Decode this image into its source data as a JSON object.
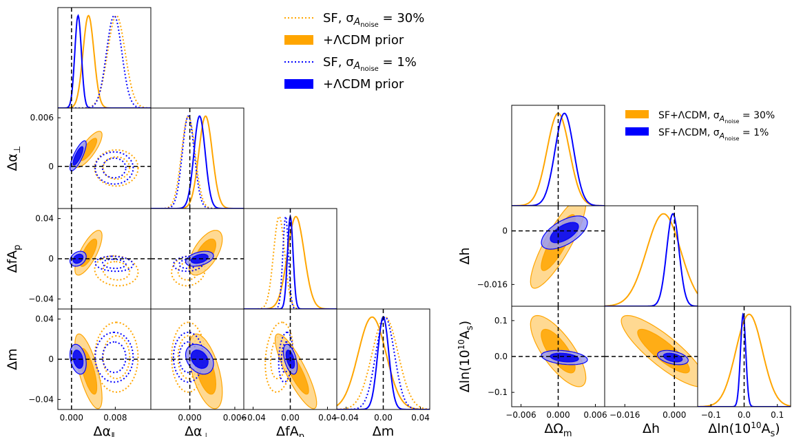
{
  "colors": {
    "orange": "#ffa500",
    "blue": "#0000ff",
    "orange_fill_inner": "#ffa500",
    "orange_fill_outer": "#ffd27f",
    "blue_fill_inner": "#0000ee",
    "blue_fill_outer": "#9999f0"
  },
  "chart_data": [
    {
      "type": "corner",
      "parameters": [
        {
          "name": "Δα_∥",
          "label_base": "Δα",
          "label_sub": "∥",
          "range": [
            -0.0025,
            0.0145
          ],
          "ticks": [
            0.0,
            0.008
          ],
          "tick_labels": [
            "0.000",
            "0.008"
          ]
        },
        {
          "name": "Δα_⊥",
          "label_base": "Δα",
          "label_sub": "⊥",
          "range": [
            -0.0052,
            0.0072
          ],
          "ticks": [
            0.0,
            0.006
          ],
          "tick_labels": [
            "0.000",
            "0.006"
          ]
        },
        {
          "name": "ΔfA_p",
          "label_base": "ΔfA",
          "label_sub": "p",
          "range": [
            -0.05,
            0.05
          ],
          "ticks": [
            -0.04,
            0.0,
            0.04
          ],
          "tick_labels": [
            "−0.04",
            "0.00",
            "0.04"
          ]
        },
        {
          "name": "Δm",
          "label_base": "Δm",
          "label_sub": "",
          "range": [
            -0.05,
            0.05
          ],
          "ticks": [
            -0.04,
            0.0,
            0.04
          ],
          "tick_labels": [
            "−0.04",
            "0.00",
            "0.04"
          ]
        }
      ],
      "y_tick_labels": {
        "Δα_⊥": [
          "0",
          "0.006"
        ],
        "ΔfA_p": [
          "−0.04",
          "0",
          "0.04"
        ],
        "Δm": [
          "−0.04",
          "0",
          "0.04"
        ]
      },
      "truth": [
        0,
        0,
        0,
        0
      ],
      "legend": {
        "placement": "top-right of corner",
        "entries": [
          {
            "label": "SF, σ",
            "sub": "A",
            "subsub": "noise",
            "tail": " = 30%",
            "color": "#ffa500",
            "style": "dotted"
          },
          {
            "label": "+ΛCDM prior",
            "sub": "",
            "subsub": "",
            "tail": "",
            "color": "#ffa500",
            "style": "filled"
          },
          {
            "label": "SF, σ",
            "sub": "A",
            "subsub": "noise",
            "tail": " = 1%",
            "color": "#0000ff",
            "style": "dotted"
          },
          {
            "label": "+ΛCDM prior",
            "sub": "",
            "subsub": "",
            "tail": "",
            "color": "#0000ff",
            "style": "filled"
          }
        ]
      },
      "series": [
        {
          "name": "SF, σ_Anoise = 30%",
          "color": "#ffa500",
          "style": "dotted",
          "mean": [
            0.0082,
            -0.0002,
            -0.012,
            0.002
          ],
          "sigma": [
            0.0016,
            0.0009,
            0.006,
            0.014
          ],
          "corr": [
            [
              1,
              0,
              -0.1,
              0
            ],
            [
              0,
              1,
              0.1,
              0
            ],
            [
              -0.1,
              0.1,
              1,
              0.2
            ],
            [
              0,
              0,
              0.2,
              1
            ]
          ]
        },
        {
          "name": "SF, σ_Anoise = 30% +ΛCDM prior",
          "color": "#ffa500",
          "style": "filled",
          "mean": [
            0.0031,
            0.0021,
            0.006,
            -0.012
          ],
          "sigma": [
            0.001,
            0.0009,
            0.009,
            0.015
          ],
          "corr": [
            [
              1,
              0.8,
              0.75,
              -0.7
            ],
            [
              0.8,
              1,
              0.6,
              -0.55
            ],
            [
              0.75,
              0.6,
              1,
              -0.85
            ],
            [
              -0.7,
              -0.55,
              -0.85,
              1
            ]
          ]
        },
        {
          "name": "SF, σ_Anoise = 1%",
          "color": "#0000ff",
          "style": "dotted",
          "mean": [
            0.0078,
            -0.0002,
            -0.005,
            0.002
          ],
          "sigma": [
            0.0014,
            0.0008,
            0.003,
            0.01
          ],
          "corr": [
            [
              1,
              0,
              -0.1,
              0
            ],
            [
              0,
              1,
              0.1,
              0
            ],
            [
              -0.1,
              0.1,
              1,
              0.2
            ],
            [
              0,
              0,
              0.2,
              1
            ]
          ]
        },
        {
          "name": "SF, σ_Anoise = 1% +ΛCDM prior",
          "color": "#0000ff",
          "style": "filled",
          "mean": [
            0.0012,
            0.0013,
            0.0,
            0.0
          ],
          "sigma": [
            0.0006,
            0.00075,
            0.003,
            0.006
          ],
          "corr": [
            [
              1,
              0.8,
              0.3,
              -0.3
            ],
            [
              0.8,
              1,
              0.4,
              -0.3
            ],
            [
              0.3,
              0.4,
              1,
              -0.5
            ],
            [
              -0.3,
              -0.3,
              -0.5,
              1
            ]
          ]
        }
      ]
    },
    {
      "type": "corner",
      "parameters": [
        {
          "name": "ΔΩ_m",
          "label_base": "ΔΩ",
          "label_sub": "m",
          "range": [
            -0.0075,
            0.0075
          ],
          "ticks": [
            -0.006,
            0.0,
            0.006
          ],
          "tick_labels": [
            "−0.006",
            "0.000",
            "0.006"
          ]
        },
        {
          "name": "Δh",
          "label_base": "Δh",
          "label_sub": "",
          "range": [
            -0.0225,
            0.0075
          ],
          "ticks": [
            -0.016,
            0.0
          ],
          "tick_labels": [
            "−0.016",
            "0.000"
          ]
        },
        {
          "name": "Δln(10^10 A_s)",
          "label_base": "Δln(10",
          "label_sub": "s",
          "range": [
            -0.14,
            0.14
          ],
          "ticks": [
            -0.1,
            0.0,
            0.1
          ],
          "tick_labels": [
            "−0.1",
            "0.0",
            "0.1"
          ]
        }
      ],
      "y_tick_labels": {
        "Δh": [
          "−0.016",
          "0"
        ],
        "Δln(10^10 A_s)": [
          "−0.1",
          "0.0",
          "0.1"
        ]
      },
      "truth": [
        0,
        0,
        0
      ],
      "legend": {
        "placement": "top-right",
        "entries": [
          {
            "label": "SF+ΛCDM, σ",
            "sub": "A",
            "subsub": "noise",
            "tail": " = 30%",
            "color": "#ffa500",
            "style": "filled"
          },
          {
            "label": "SF+ΛCDM, σ",
            "sub": "A",
            "subsub": "noise",
            "tail": " = 1%",
            "color": "#0000ff",
            "style": "filled"
          }
        ]
      },
      "series": [
        {
          "name": "SF+ΛCDM, σ_Anoise = 30%",
          "color": "#ffa500",
          "style": "filled",
          "mean": [
            0.0,
            -0.0035,
            0.015
          ],
          "sigma": [
            0.0018,
            0.0055,
            0.04
          ],
          "corr": [
            [
              1,
              0.85,
              -0.75
            ],
            [
              0.85,
              1,
              -0.85
            ],
            [
              -0.75,
              -0.85,
              1
            ]
          ]
        },
        {
          "name": "SF+ΛCDM, σ_Anoise = 1%",
          "color": "#0000ff",
          "style": "filled",
          "mean": [
            0.001,
            -0.0005,
            -0.003
          ],
          "sigma": [
            0.0015,
            0.002,
            0.008
          ],
          "corr": [
            [
              1,
              0.6,
              -0.3
            ],
            [
              0.6,
              1,
              -0.4
            ],
            [
              -0.3,
              -0.4,
              1
            ]
          ]
        }
      ]
    }
  ]
}
